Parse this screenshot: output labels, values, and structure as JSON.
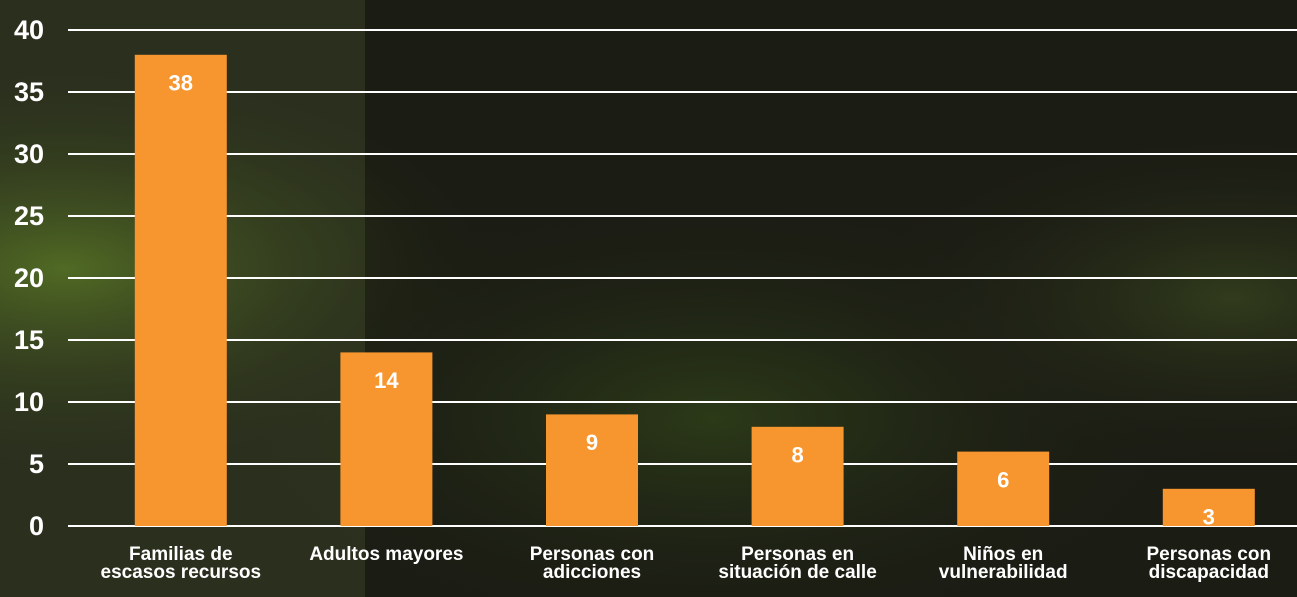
{
  "chart_data": {
    "type": "bar",
    "categories": [
      "Familias de\nescasos recursos",
      "Adultos mayores",
      "Personas con\nadicciones",
      "Personas en\nsituación de calle",
      "Niños en\nvulnerabilidad",
      "Personas con\ndiscapacidad"
    ],
    "values": [
      38,
      14,
      9,
      8,
      6,
      3
    ],
    "color": "#f7952f",
    "ylim": [
      0,
      40
    ],
    "yticks": [
      0,
      5,
      10,
      15,
      20,
      25,
      30,
      35,
      40
    ],
    "grid": true
  }
}
